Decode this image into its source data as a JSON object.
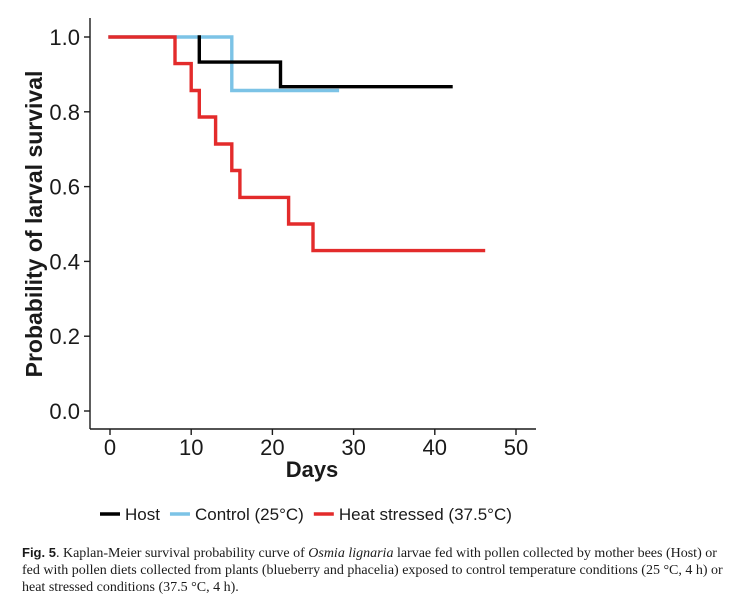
{
  "chart_data": {
    "type": "line",
    "step": true,
    "title": "",
    "xlabel": "Days",
    "ylabel": "Probability of larval survival",
    "xlim": [
      0,
      50
    ],
    "ylim": [
      0,
      1
    ],
    "xticks": [
      0,
      10,
      20,
      30,
      40,
      50
    ],
    "xtick_labels": [
      "0",
      "10",
      "20",
      "30",
      "40",
      "50"
    ],
    "yticks": [
      0,
      0.2,
      0.4,
      0.6,
      0.8,
      1.0
    ],
    "ytick_labels": [
      "0.0",
      "0.2",
      "0.4",
      "0.6",
      "0.8",
      "1.0"
    ],
    "grid": false,
    "legend_position": "bottom",
    "series": [
      {
        "name": "Control (25°C)",
        "color": "#7cc3e6",
        "x": [
          0,
          15,
          15,
          28
        ],
        "y": [
          1.0,
          1.0,
          0.857,
          0.857
        ]
      },
      {
        "name": "Host",
        "color": "#000000",
        "x": [
          11,
          11,
          21,
          21,
          42
        ],
        "y": [
          1.0,
          0.933,
          0.933,
          0.867,
          0.867
        ]
      },
      {
        "name": "Heat stressed (37.5°C)",
        "color": "#e32b2b",
        "x": [
          0,
          8,
          8,
          10,
          10,
          11,
          11,
          13,
          13,
          15,
          15,
          16,
          16,
          22,
          22,
          25,
          25,
          46
        ],
        "y": [
          1.0,
          1.0,
          0.929,
          0.929,
          0.857,
          0.857,
          0.786,
          0.786,
          0.714,
          0.714,
          0.643,
          0.643,
          0.571,
          0.571,
          0.5,
          0.5,
          0.429,
          0.429
        ]
      }
    ],
    "legend": [
      {
        "label": "Host",
        "color": "#000000"
      },
      {
        "label": "Control (25°C)",
        "color": "#7cc3e6"
      },
      {
        "label": "Heat stressed (37.5°C)",
        "color": "#e32b2b"
      }
    ]
  },
  "caption": {
    "label": "Fig. 5",
    "text_1": ".  Kaplan-Meier survival probability curve of ",
    "species": "Osmia lignaria",
    "text_2": " larvae fed with pollen collected by mother bees (Host) or fed with pollen diets collected from plants (blueberry and phacelia) exposed to control temperature conditions (25 °C, 4 h) or heat stressed conditions (37.5 °C, 4 h)."
  }
}
